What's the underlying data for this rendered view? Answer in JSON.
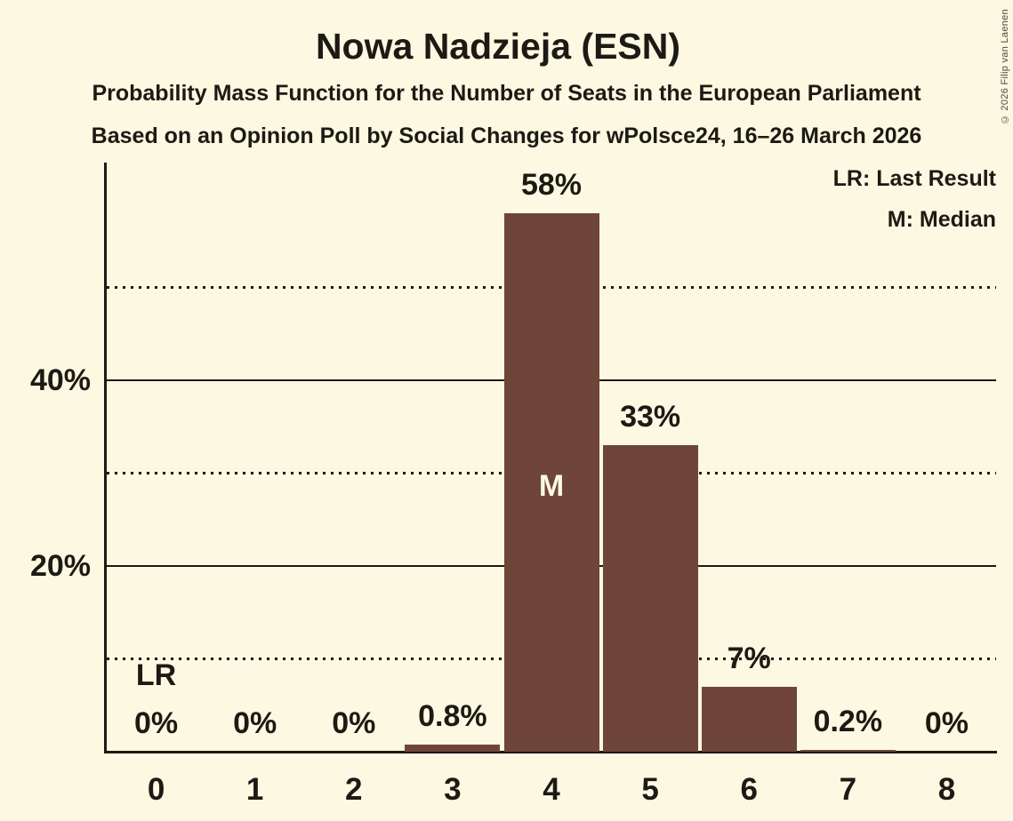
{
  "title": "Nowa Nadzieja (ESN)",
  "subtitle1": "Probability Mass Function for the Number of Seats in the European Parliament",
  "subtitle2": "Based on an Opinion Poll by Social Changes for wPolsce24, 16–26 March 2026",
  "copyright": "© 2026 Filip van Laenen",
  "legend": {
    "lr": "LR: Last Result",
    "m": "M: Median"
  },
  "colors": {
    "background": "#FCF8E1",
    "bar": "#6F4539",
    "text": "#1C1A14",
    "inside_bar_text": "#FCF8E1",
    "copyright_text": "#4C4A40"
  },
  "chart_data": {
    "type": "bar",
    "title": "Nowa Nadzieja (ESN)",
    "subtitle": [
      "Probability Mass Function for the Number of Seats in the European Parliament",
      "Based on an Opinion Poll by Social Changes for wPolsce24, 16–26 March 2026"
    ],
    "xlabel": "",
    "ylabel": "",
    "categories": [
      "0",
      "1",
      "2",
      "3",
      "4",
      "5",
      "6",
      "7",
      "8"
    ],
    "values": [
      0,
      0,
      0,
      0.8,
      58,
      33,
      7,
      0.2,
      0
    ],
    "value_labels": [
      "0%",
      "0%",
      "0%",
      "0.8%",
      "58%",
      "33%",
      "7%",
      "0.2%",
      "0%"
    ],
    "ylim": [
      0,
      63.5
    ],
    "yticks": [
      {
        "value": 20,
        "label": "20%",
        "style": "solid"
      },
      {
        "value": 40,
        "label": "40%",
        "style": "solid"
      }
    ],
    "dotted_gridlines": [
      10,
      30,
      50
    ],
    "grid": "solid horizontal lines at 20% and 40%; dotted horizontal lines at 10%, 30% and 50%",
    "legend_position": "top-right",
    "legend_entries": [
      "LR: Last Result",
      "M: Median"
    ],
    "annotations": [
      {
        "category_index": 0,
        "text": "LR",
        "placement": "above-value-label"
      },
      {
        "category_index": 4,
        "text": "M",
        "placement": "inside-bar"
      }
    ]
  }
}
